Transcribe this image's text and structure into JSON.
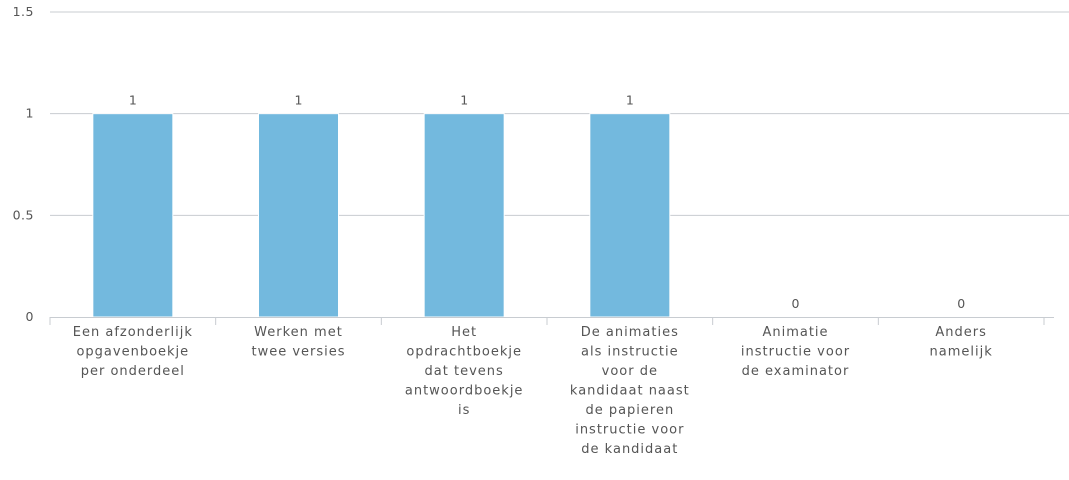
{
  "chart_data": {
    "type": "bar",
    "title": "",
    "xlabel": "",
    "ylabel": "",
    "ylim": [
      0,
      1.5
    ],
    "yticks": [
      "0",
      "0.5",
      "1",
      "1.5"
    ],
    "grid": true,
    "legend": "none",
    "bar_color": "#73b9de",
    "grid_color": "#c8ccd1",
    "categories": [
      [
        "Een afzonderlijk",
        "opgavenboekje",
        "per onderdeel"
      ],
      [
        "Werken met",
        "twee versies"
      ],
      [
        "Het",
        "opdrachtboekje",
        "dat tevens",
        "antwoordboekje",
        "is"
      ],
      [
        "De animaties",
        "als instructie",
        "voor de",
        "kandidaat naast",
        "de papieren",
        "instructie voor",
        "de kandidaat"
      ],
      [
        "Animatie",
        "instructie voor",
        "de examinator"
      ],
      [
        "Anders",
        "namelijk"
      ]
    ],
    "values": [
      1,
      1,
      1,
      1,
      0,
      0
    ],
    "data_labels": [
      "1",
      "1",
      "1",
      "1",
      "0",
      "0"
    ]
  }
}
